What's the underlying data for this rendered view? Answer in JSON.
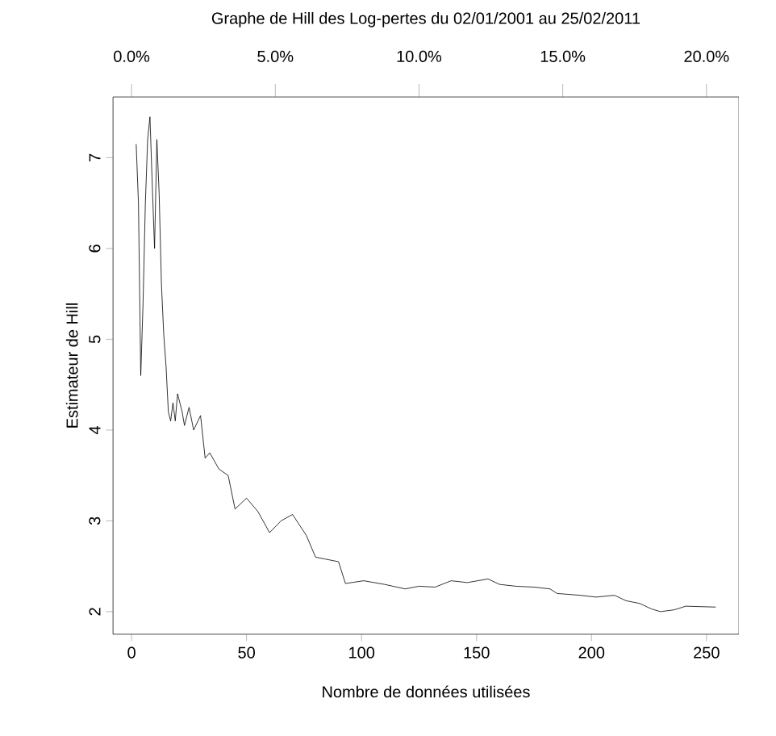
{
  "chart_data": {
    "type": "line",
    "title": "Graphe de Hill des Log-pertes du 02/01/2001 au 25/02/2011",
    "xlabel": "Nombre de données utilisées",
    "ylabel": "Estimateur de Hill",
    "x": [
      2,
      3,
      4,
      5,
      6,
      7,
      8,
      9,
      10,
      11,
      12,
      13,
      14,
      15,
      16,
      17,
      18,
      19,
      20,
      22,
      23,
      25,
      27,
      30,
      32,
      34,
      38,
      42,
      45,
      50,
      55,
      60,
      65,
      70,
      76,
      80,
      84,
      90,
      93,
      101,
      110,
      119,
      125,
      132,
      139,
      146,
      155,
      160,
      167,
      175,
      182,
      185,
      195,
      202,
      210,
      215,
      221,
      226,
      230,
      236,
      241,
      254
    ],
    "series": [
      {
        "color": "#000000",
        "values": [
          7.15,
          6.5,
          4.6,
          5.4,
          6.5,
          7.2,
          7.45,
          6.7,
          6.0,
          7.2,
          6.6,
          5.6,
          5.05,
          4.7,
          4.2,
          4.1,
          4.3,
          4.1,
          4.4,
          4.2,
          4.05,
          4.25,
          4.0,
          4.16,
          3.69,
          3.75,
          3.57,
          3.5,
          3.13,
          3.25,
          3.1,
          2.87,
          3.0,
          3.07,
          2.84,
          2.6,
          2.58,
          2.55,
          2.31,
          2.34,
          2.3,
          2.25,
          2.28,
          2.27,
          2.34,
          2.32,
          2.36,
          2.3,
          2.28,
          2.27,
          2.25,
          2.2,
          2.18,
          2.16,
          2.18,
          2.12,
          2.09,
          2.03,
          2.0,
          2.02,
          2.06,
          2.05
        ]
      }
    ],
    "xlim": [
      -8.1,
      264.1
    ],
    "ylim": [
      1.75,
      7.67
    ],
    "xticks": [
      0,
      50,
      100,
      150,
      200,
      250
    ],
    "yticks": [
      2,
      3,
      4,
      5,
      6,
      7
    ],
    "x2lim": [
      -0.648,
      21.128
    ],
    "x2ticks": [
      {
        "value": 0,
        "label": "0.0%"
      },
      {
        "value": 5,
        "label": "5.0%"
      },
      {
        "value": 10,
        "label": "10.0%"
      },
      {
        "value": 15,
        "label": "15.0%"
      },
      {
        "value": 20,
        "label": "20.0%"
      }
    ],
    "grid": false,
    "marker": "none",
    "line_style": "solid"
  }
}
